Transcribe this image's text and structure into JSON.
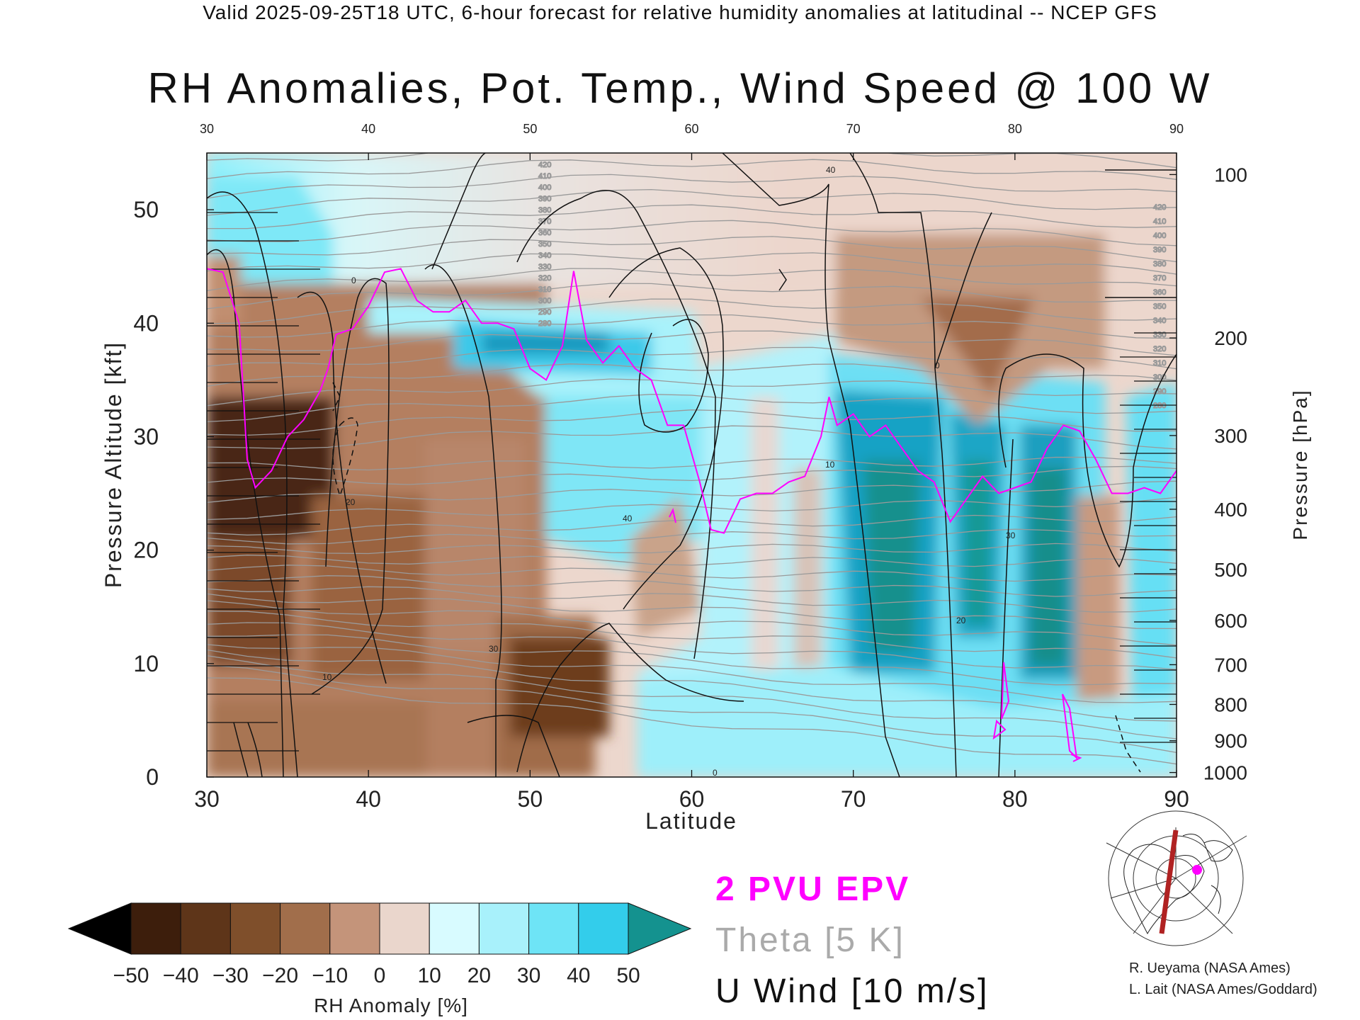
{
  "header": "Valid 2025-09-25T18 UTC, 6-hour forecast for relative humidity anomalies at latitudinal -- NCEP GFS",
  "title": "RH Anomalies, Pot. Temp., Wind Speed @ 100 W",
  "legend": {
    "epv": "2 PVU EPV",
    "theta": "Theta [5 K]",
    "wind": "U Wind [10 m/s]"
  },
  "credits": [
    "R. Ueyama (NASA Ames)",
    "L. Lait (NASA Ames/Goddard)"
  ],
  "colorbar": {
    "label": "RH Anomaly [%]",
    "ticks": [
      "−50",
      "−40",
      "−30",
      "−20",
      "−10",
      "0",
      "10",
      "20",
      "30",
      "40",
      "50"
    ],
    "colors": [
      "#3d1e0c",
      "#5e3519",
      "#7f4f2b",
      "#a16e4b",
      "#c4947a",
      "#ead6cc",
      "#d8fbff",
      "#a8f1fb",
      "#6ee4f6",
      "#33cdeb",
      "#0a9ec4"
    ],
    "under_color": "#000000",
    "over_color": "#14928f"
  },
  "chart_data": {
    "type": "heatmap",
    "xlabel": "Latitude",
    "ylabel_left": "Pressure Altitude [kft]",
    "ylabel_right": "Pressure [hPa]",
    "xlim": [
      30,
      90
    ],
    "ylim": [
      0,
      55
    ],
    "x_ticks": [
      "30",
      "40",
      "50",
      "60",
      "70",
      "80",
      "90"
    ],
    "top_ticks": [
      "30",
      "40",
      "50",
      "60",
      "70",
      "80",
      "90"
    ],
    "left_ticks": [
      "0",
      "10",
      "20",
      "30",
      "40",
      "50"
    ],
    "right_ticks": [
      {
        "label": "100",
        "kft": 53.1
      },
      {
        "label": "200",
        "kft": 38.7
      },
      {
        "label": "300",
        "kft": 30.1
      },
      {
        "label": "400",
        "kft": 23.6
      },
      {
        "label": "500",
        "kft": 18.3
      },
      {
        "label": "600",
        "kft": 13.8
      },
      {
        "label": "700",
        "kft": 9.9
      },
      {
        "label": "800",
        "kft": 6.4
      },
      {
        "label": "900",
        "kft": 3.2
      },
      {
        "label": "1000",
        "kft": 0.4
      }
    ],
    "tropopause_epv": [
      [
        30,
        44.8
      ],
      [
        31,
        44.5
      ],
      [
        32,
        40
      ],
      [
        32.5,
        28
      ],
      [
        33,
        25.5
      ],
      [
        34,
        27
      ],
      [
        35,
        30
      ],
      [
        36,
        31.5
      ],
      [
        37,
        34
      ],
      [
        37.5,
        36
      ],
      [
        38,
        39
      ],
      [
        39,
        39.5
      ],
      [
        40,
        41.5
      ],
      [
        41,
        44.5
      ],
      [
        42,
        44.8
      ],
      [
        43,
        42
      ],
      [
        44,
        41
      ],
      [
        45,
        41
      ],
      [
        46,
        42
      ],
      [
        47,
        40
      ],
      [
        48,
        40
      ],
      [
        49,
        39.5
      ],
      [
        50,
        36
      ],
      [
        51,
        35
      ],
      [
        52,
        38
      ],
      [
        52.7,
        44.6
      ],
      [
        53.5,
        38.5
      ],
      [
        54.5,
        36.5
      ],
      [
        55.5,
        38
      ],
      [
        56.5,
        36
      ],
      [
        57.5,
        35
      ],
      [
        58.5,
        31
      ],
      [
        59.5,
        31
      ],
      [
        60.5,
        26
      ],
      [
        61.2,
        21.8
      ],
      [
        62,
        21.5
      ],
      [
        63,
        24.5
      ],
      [
        64,
        25
      ],
      [
        65,
        25
      ],
      [
        66,
        26
      ],
      [
        67,
        26.5
      ],
      [
        68,
        30
      ],
      [
        68.5,
        33.5
      ],
      [
        69,
        31
      ],
      [
        70,
        32
      ],
      [
        71,
        30
      ],
      [
        72,
        31
      ],
      [
        73,
        29
      ],
      [
        74,
        27
      ],
      [
        75,
        26
      ],
      [
        76,
        22.5
      ],
      [
        77,
        24.5
      ],
      [
        78,
        26.5
      ],
      [
        79,
        25
      ],
      [
        80,
        25.5
      ],
      [
        81,
        26
      ],
      [
        82,
        29
      ],
      [
        83,
        31
      ],
      [
        84,
        30.5
      ],
      [
        85,
        28
      ],
      [
        86,
        25
      ],
      [
        87,
        25
      ],
      [
        88,
        25.5
      ],
      [
        89,
        25
      ],
      [
        90,
        27
      ]
    ],
    "theta_labels": [
      "420",
      "410",
      "400",
      "390",
      "380",
      "370",
      "360",
      "350",
      "340",
      "330",
      "320",
      "310",
      "300",
      "290",
      "280"
    ],
    "wind_labels": [
      "0",
      "10",
      "20",
      "30",
      "40"
    ]
  }
}
